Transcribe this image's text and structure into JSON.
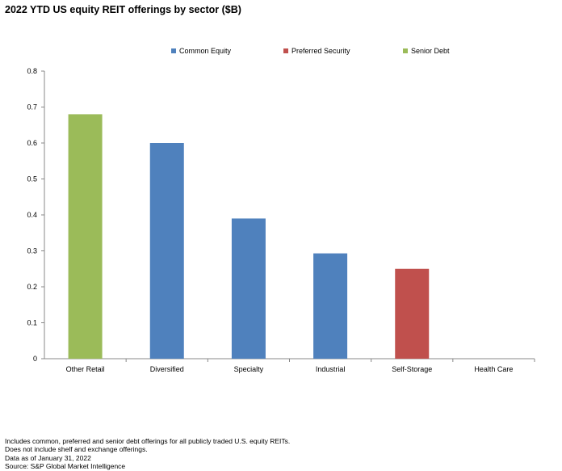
{
  "title": "2022 YTD US equity REIT offerings by sector ($B)",
  "legend": [
    {
      "label": "Common Equity",
      "color": "#4F81BD"
    },
    {
      "label": "Preferred Security",
      "color": "#C0504D"
    },
    {
      "label": "Senior Debt",
      "color": "#9BBB59"
    }
  ],
  "chart_data": {
    "type": "bar",
    "title": "2022 YTD US equity REIT offerings by sector ($B)",
    "categories": [
      "Other Retail",
      "Diversified",
      "Specialty",
      "Industrial",
      "Self-Storage",
      "Health Care"
    ],
    "series": [
      {
        "name": "Common Equity",
        "color": "#4F81BD",
        "values": [
          0,
          0.6,
          0.39,
          0.293,
          0,
          0
        ]
      },
      {
        "name": "Preferred Security",
        "color": "#C0504D",
        "values": [
          0,
          0,
          0,
          0,
          0.25,
          0
        ]
      },
      {
        "name": "Senior Debt",
        "color": "#9BBB59",
        "values": [
          0.68,
          0,
          0,
          0,
          0,
          0
        ]
      }
    ],
    "ylim": [
      0,
      0.8
    ],
    "yticks": [
      "0",
      "0.1",
      "0.2",
      "0.3",
      "0.4",
      "0.5",
      "0.6",
      "0.7",
      "0.8"
    ],
    "xlabel": "",
    "ylabel": "",
    "grid": false,
    "legend_position": "top"
  },
  "notes": [
    "Includes common, preferred and senior debt offerings for all publicly traded U.S. equity REITs.",
    "Does not include shelf and exchange offerings.",
    "Data as of January 31, 2022",
    "Source: S&P Global Market Intelligence"
  ]
}
